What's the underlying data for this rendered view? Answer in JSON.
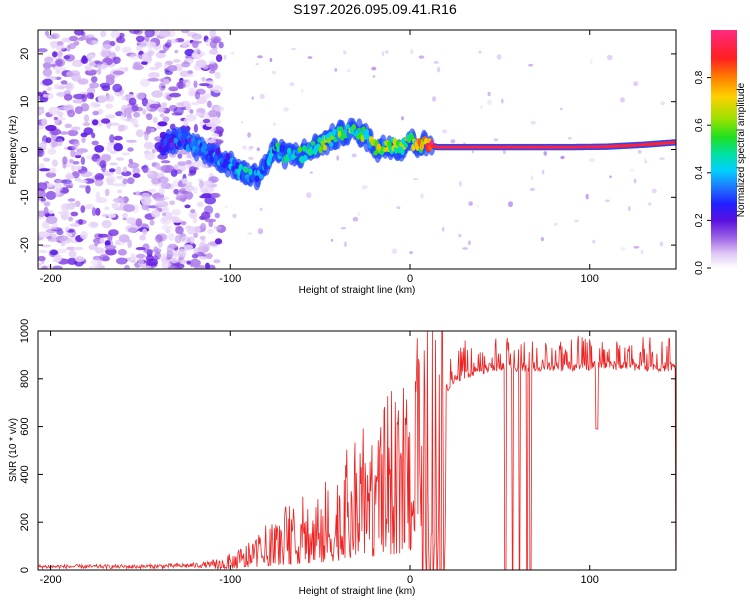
{
  "title": "S197.2026.095.09.41.R16",
  "chart_data": [
    {
      "type": "heatmap",
      "title": "S197.2026.095.09.41.R16",
      "xlabel": "Height of straight line (km)",
      "ylabel": "Frequency (Hz)",
      "xlim": [
        -207,
        148
      ],
      "ylim": [
        -25,
        25
      ],
      "xticks": [
        -200,
        -100,
        0,
        100
      ],
      "yticks": [
        -20,
        -10,
        0,
        10,
        20
      ],
      "colorbar": {
        "label": "Normalized spectral amplitude",
        "range": [
          0,
          1
        ],
        "ticks": [
          "0.0",
          "0.2",
          "0.4",
          "0.6",
          "0.8"
        ],
        "tick_values": [
          0,
          0.2,
          0.4,
          0.6,
          0.8
        ],
        "colors": [
          "#e6d6f5",
          "#c8a8ef",
          "#9a5fe6",
          "#6a1fe0",
          "#3010e0",
          "#1e5cff",
          "#00c8ff",
          "#00e0a0",
          "#40e000",
          "#c8e000",
          "#ffc800",
          "#ff7000",
          "#ff1a1a",
          "#ff2a80"
        ]
      },
      "ridge": {
        "x": [
          -138,
          -130,
          -120,
          -110,
          -100,
          -92,
          -85,
          -80,
          -75,
          -70,
          -60,
          -50,
          -40,
          -33,
          -25,
          -18,
          -10,
          -5,
          0,
          5,
          10,
          15,
          30,
          50,
          70,
          90,
          110,
          130,
          148
        ],
        "freq": [
          1,
          2,
          1,
          -1,
          -3,
          -5,
          -5.5,
          -3,
          0,
          -1,
          -1,
          1,
          3,
          4,
          3,
          0,
          1,
          0,
          2,
          1,
          1,
          0.5,
          0.5,
          0.5,
          0.5,
          0.5,
          0.6,
          1.0,
          1.5
        ],
        "amplitude": [
          0.25,
          0.3,
          0.3,
          0.32,
          0.35,
          0.4,
          0.38,
          0.35,
          0.42,
          0.4,
          0.45,
          0.5,
          0.55,
          0.55,
          0.55,
          0.6,
          0.55,
          0.6,
          0.6,
          0.65,
          0.85,
          0.92,
          0.92,
          0.92,
          0.92,
          0.92,
          0.92,
          0.9,
          0.9
        ]
      },
      "noise_region_x": [
        -207,
        -105
      ]
    },
    {
      "type": "line",
      "xlabel": "Height of straight line (km)",
      "ylabel": "SNR (10 * v/v)",
      "xlim": [
        -207,
        148
      ],
      "ylim": [
        0,
        1000
      ],
      "xticks": [
        -200,
        -100,
        0,
        100
      ],
      "yticks": [
        0,
        200,
        400,
        600,
        800,
        1000
      ],
      "series": [
        {
          "name": "SNR",
          "color": "#ee2222",
          "envelope_x": [
            -207,
            -150,
            -120,
            -110,
            -100,
            -90,
            -80,
            -70,
            -60,
            -50,
            -40,
            -30,
            -20,
            -10,
            -5,
            0,
            5,
            10,
            15,
            20,
            25,
            30,
            40,
            50,
            60,
            80,
            100,
            120,
            148
          ],
          "envelope_y": [
            15,
            15,
            20,
            25,
            40,
            70,
            110,
            150,
            180,
            200,
            260,
            320,
            380,
            430,
            470,
            520,
            570,
            620,
            700,
            760,
            800,
            820,
            840,
            850,
            850,
            850,
            855,
            855,
            850
          ],
          "dropouts_x": [
            7,
            9,
            11,
            13,
            15,
            17,
            19,
            53,
            57,
            61,
            65,
            67,
            148
          ],
          "dips": [
            {
              "x": 104,
              "y": 590
            }
          ]
        }
      ]
    }
  ]
}
